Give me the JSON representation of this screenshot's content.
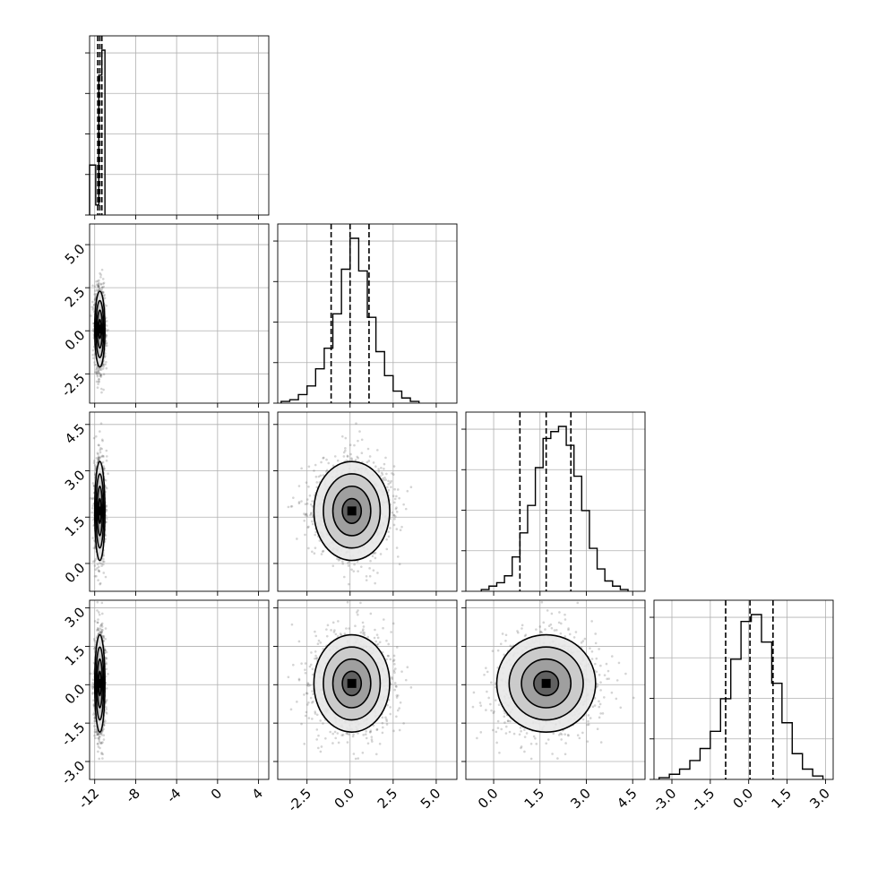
{
  "chart_data": {
    "type": "corner",
    "parameters": [
      {
        "name": "",
        "range": [
          -12.5,
          5.0
        ],
        "ticks": [
          "-12",
          "-8",
          "-4",
          "0",
          "4"
        ],
        "tick_values": [
          -12,
          -8,
          -4,
          0,
          4
        ],
        "quantiles": [
          -11.7,
          -11.5,
          -11.3
        ]
      },
      {
        "name": "",
        "range": [
          -4.2,
          6.2
        ],
        "ticks": [
          "-2.5",
          "0.0",
          "2.5",
          "5.0"
        ],
        "tick_values": [
          -2.5,
          0.0,
          2.5,
          5.0
        ],
        "quantiles": [
          -1.1,
          0.0,
          1.1
        ]
      },
      {
        "name": "",
        "range": [
          -0.9,
          4.9
        ],
        "ticks": [
          "0.0",
          "1.5",
          "3.0",
          "4.5"
        ],
        "tick_values": [
          0.0,
          1.5,
          3.0,
          4.5
        ],
        "quantiles": [
          0.85,
          1.7,
          2.5
        ]
      },
      {
        "name": "",
        "range": [
          -3.7,
          3.3
        ],
        "ticks": [
          "-3.0",
          "-1.5",
          "0.0",
          "1.5",
          "3.0"
        ],
        "tick_values": [
          -3.0,
          -1.5,
          0.0,
          1.5,
          3.0
        ],
        "quantiles": [
          -0.9,
          0.05,
          0.95
        ]
      }
    ],
    "histograms": [
      {
        "bins": [
          -12.5,
          -12.2,
          -11.9,
          -11.6,
          -11.3,
          -11.0
        ],
        "counts": [
          0.5,
          0.5,
          0.1,
          1.4,
          1.65
        ]
      },
      {
        "bins": [
          -4.0,
          -3.5,
          -3.0,
          -2.5,
          -2.0,
          -1.5,
          -1.0,
          -0.5,
          0.0,
          0.5,
          1.0,
          1.5,
          2.0,
          2.5,
          3.0,
          3.5,
          4.0
        ],
        "counts": [
          0.01,
          0.02,
          0.05,
          0.1,
          0.2,
          0.32,
          0.52,
          0.78,
          0.96,
          0.77,
          0.5,
          0.3,
          0.16,
          0.07,
          0.03,
          0.01
        ]
      },
      {
        "bins": [
          -0.4,
          -0.15,
          0.1,
          0.35,
          0.6,
          0.85,
          1.1,
          1.35,
          1.6,
          1.85,
          2.1,
          2.35,
          2.6,
          2.85,
          3.1,
          3.35,
          3.6,
          3.85,
          4.1,
          4.35
        ],
        "counts": [
          0.01,
          0.03,
          0.05,
          0.09,
          0.2,
          0.34,
          0.5,
          0.72,
          0.89,
          0.93,
          0.96,
          0.85,
          0.67,
          0.47,
          0.25,
          0.13,
          0.06,
          0.03,
          0.01
        ]
      },
      {
        "bins": [
          -3.5,
          -3.1,
          -2.7,
          -2.3,
          -1.9,
          -1.5,
          -1.1,
          -0.7,
          -0.3,
          0.1,
          0.5,
          0.9,
          1.3,
          1.7,
          2.1,
          2.5,
          2.9
        ],
        "counts": [
          0.01,
          0.03,
          0.06,
          0.11,
          0.18,
          0.28,
          0.47,
          0.7,
          0.92,
          0.96,
          0.8,
          0.56,
          0.33,
          0.15,
          0.06,
          0.02
        ]
      }
    ],
    "posterior_centers": [
      -11.5,
      0.1,
      1.7,
      0.05
    ],
    "posterior_spreads": [
      0.25,
      1.1,
      0.8,
      0.95
    ]
  }
}
